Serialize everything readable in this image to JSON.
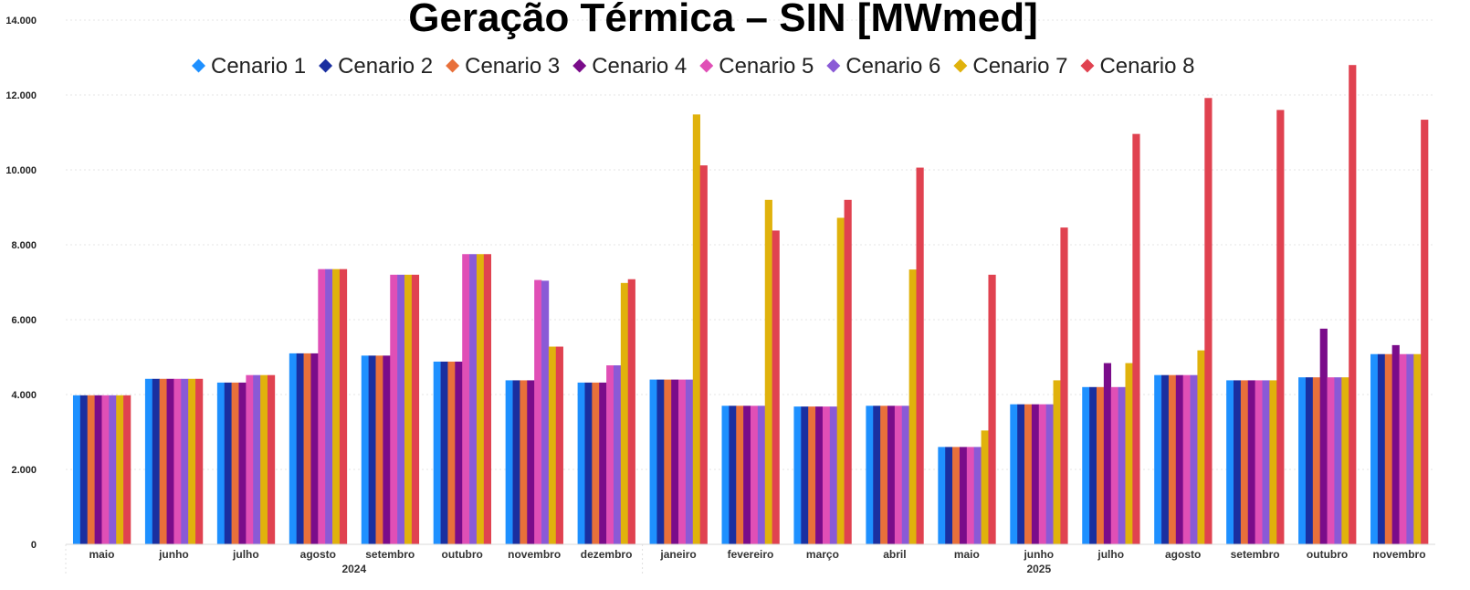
{
  "chart_data": {
    "type": "bar",
    "title": "Geração Térmica – SIN [MWmed]",
    "xlabel": "",
    "ylabel": "",
    "ylim": [
      0,
      14000
    ],
    "yticks": [
      0,
      2000,
      4000,
      6000,
      8000,
      10000,
      12000,
      14000
    ],
    "ytick_labels": [
      "0",
      "2.000",
      "4.000",
      "6.000",
      "8.000",
      "10.000",
      "12.000",
      "14.000"
    ],
    "grid": true,
    "legend_position": "top-center",
    "categories": [
      "maio",
      "junho",
      "julho",
      "agosto",
      "setembro",
      "outubro",
      "novembro",
      "dezembro",
      "janeiro",
      "fevereiro",
      "março",
      "abril",
      "maio",
      "junho",
      "julho",
      "agosto",
      "setembro",
      "outubro",
      "novembro"
    ],
    "category_groups": [
      {
        "label": "2024",
        "start": 0,
        "end": 7
      },
      {
        "label": "2025",
        "start": 8,
        "end": 18
      }
    ],
    "series": [
      {
        "name": "Cenario 1",
        "color": "#1e90ff",
        "values": [
          3980,
          4420,
          4320,
          5100,
          5040,
          4880,
          4380,
          4320,
          4400,
          3700,
          3680,
          3700,
          2600,
          3740,
          4200,
          4520,
          4380,
          4460,
          5080
        ]
      },
      {
        "name": "Cenario 2",
        "color": "#1a2fa0",
        "values": [
          3980,
          4420,
          4320,
          5100,
          5040,
          4880,
          4380,
          4320,
          4400,
          3700,
          3680,
          3700,
          2600,
          3740,
          4200,
          4520,
          4380,
          4460,
          5080
        ]
      },
      {
        "name": "Cenario 3",
        "color": "#e8703a",
        "values": [
          3980,
          4420,
          4320,
          5100,
          5040,
          4880,
          4380,
          4320,
          4400,
          3700,
          3680,
          3700,
          2600,
          3740,
          4200,
          4520,
          4380,
          4460,
          5080
        ]
      },
      {
        "name": "Cenario 4",
        "color": "#7a0c8a",
        "values": [
          3980,
          4420,
          4320,
          5100,
          5040,
          4880,
          4380,
          4320,
          4400,
          3700,
          3680,
          3700,
          2600,
          3740,
          4840,
          4520,
          4380,
          5760,
          5320
        ]
      },
      {
        "name": "Cenario 5",
        "color": "#e04fb6",
        "values": [
          3980,
          4420,
          4520,
          7350,
          7200,
          7750,
          7060,
          4780,
          4400,
          3700,
          3680,
          3700,
          2600,
          3740,
          4200,
          4520,
          4380,
          4460,
          5080
        ]
      },
      {
        "name": "Cenario 6",
        "color": "#8a5ad6",
        "values": [
          3980,
          4420,
          4520,
          7350,
          7200,
          7750,
          7040,
          4780,
          4400,
          3700,
          3680,
          3700,
          2600,
          3740,
          4200,
          4520,
          4380,
          4460,
          5080
        ]
      },
      {
        "name": "Cenario 7",
        "color": "#e0b20c",
        "values": [
          3980,
          4420,
          4520,
          7350,
          7200,
          7750,
          5280,
          6980,
          11480,
          9200,
          8720,
          7340,
          3040,
          4380,
          4840,
          5180,
          4380,
          4460,
          5080
        ]
      },
      {
        "name": "Cenario 8",
        "color": "#e04250",
        "values": [
          3980,
          4420,
          4520,
          7350,
          7200,
          7750,
          5280,
          7080,
          10120,
          8380,
          9200,
          10060,
          7200,
          8460,
          10960,
          11920,
          11600,
          12800,
          11340
        ]
      }
    ]
  }
}
